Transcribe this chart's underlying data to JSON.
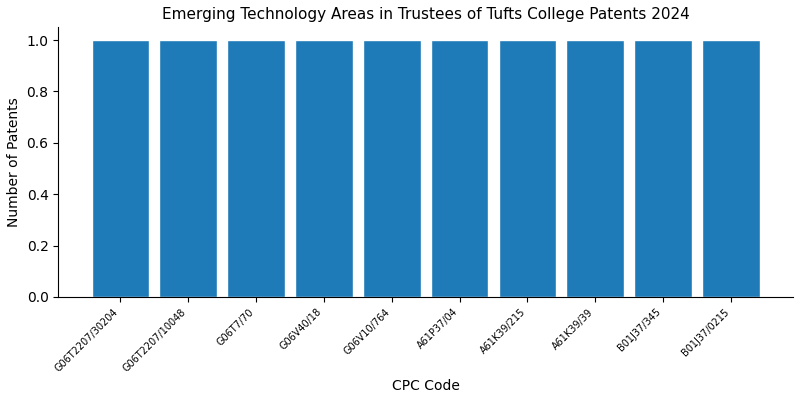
{
  "title": "Emerging Technology Areas in Trustees of Tufts College Patents 2024",
  "xlabel": "CPC Code",
  "ylabel": "Number of Patents",
  "categories": [
    "G06T2207/30204",
    "G06T2207/10048",
    "G06T7/70",
    "G06V40/18",
    "G06V10/764",
    "A61P37/04",
    "A61K39/215",
    "A61K39/39",
    "B01J37/345",
    "B01J37/0215"
  ],
  "values": [
    1,
    1,
    1,
    1,
    1,
    1,
    1,
    1,
    1,
    1
  ],
  "bar_color": "#1f7ab8",
  "bar_width": 0.85,
  "ylim": [
    0,
    1.05
  ],
  "yticks": [
    0.0,
    0.2,
    0.4,
    0.6,
    0.8,
    1.0
  ],
  "figsize": [
    8.0,
    4.0
  ],
  "dpi": 100,
  "title_fontsize": 11,
  "tick_fontsize": 7,
  "label_fontsize": 10
}
